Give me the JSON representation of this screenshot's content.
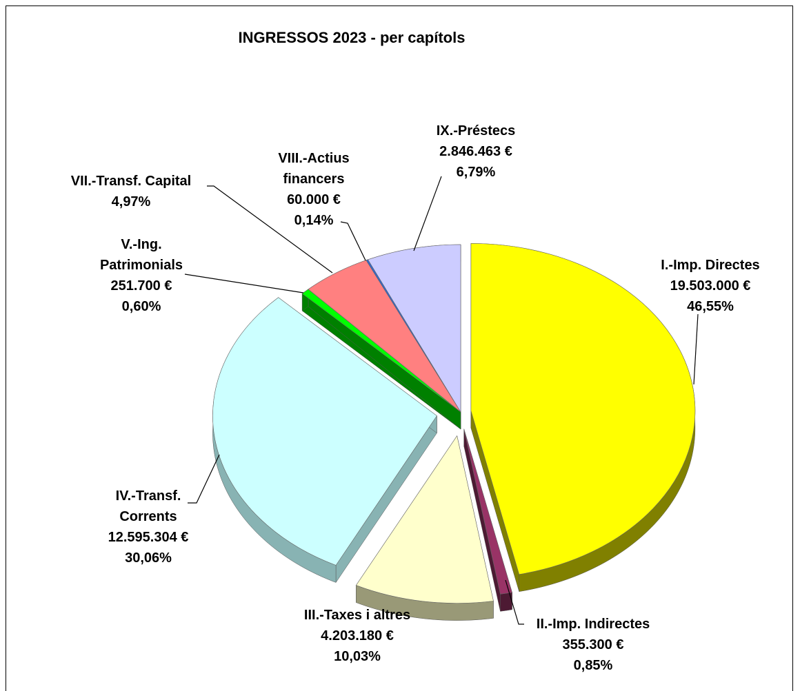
{
  "chart_data": {
    "type": "pie",
    "title": "INGRESSOS 2023 - per capítols",
    "categories": [
      "I.-Imp. Directes",
      "II.-Imp. Indirectes",
      "III.-Taxes i altres",
      "IV.-Transf. Corrents",
      "V.-Ing. Patrimonials",
      "VII.-Transf. Capital",
      "VIII.-Actius financers",
      "IX.-Préstecs"
    ],
    "values": [
      46.55,
      0.85,
      10.03,
      30.06,
      0.6,
      4.97,
      0.14,
      6.79
    ],
    "value_labels": [
      "46,55%",
      "0,85%",
      "10,03%",
      "30,06%",
      "0,60%",
      "4,97%",
      "0,14%",
      "6,79%"
    ],
    "amounts": [
      19503000,
      355300,
      4203180,
      12595304,
      251700,
      null,
      60000,
      2846463
    ],
    "amount_labels": [
      "19.503.000 €",
      "355.300 €",
      "4.203.180 €",
      "12.595.304 €",
      "251.700 €",
      null,
      "60.000 €",
      "2.846.463 €"
    ],
    "colors": [
      "#ffff00",
      "#993366",
      "#ffffcc",
      "#ccffff",
      "#00ff00",
      "#ff8080",
      "#3366cc",
      "#ccccff"
    ],
    "side_colors": [
      "#808000",
      "#4d1a33",
      "#999977",
      "#88b3b3",
      "#008000",
      "#b35a5a",
      "#1f3d7a",
      "#8f8fb3"
    ]
  }
}
